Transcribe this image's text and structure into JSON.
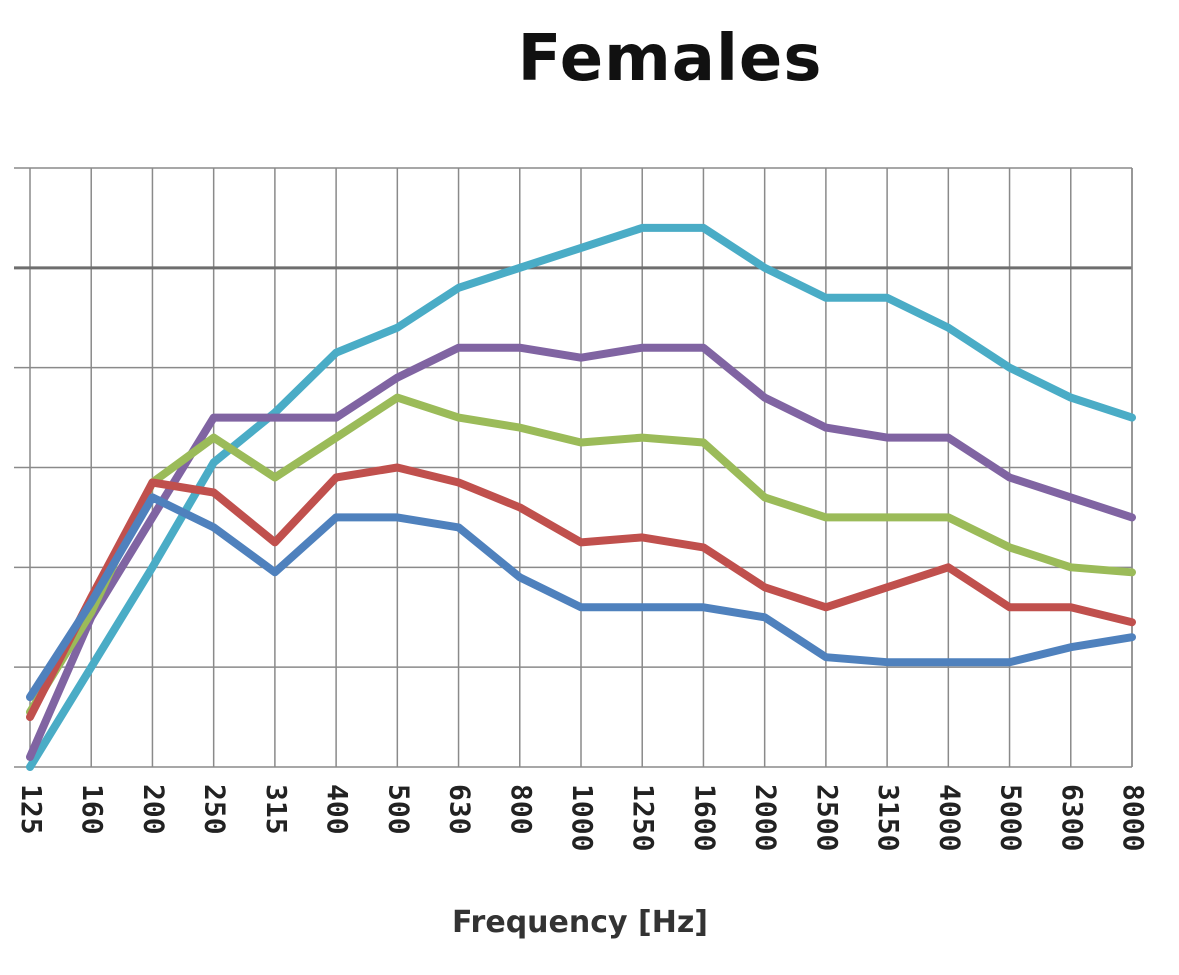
{
  "chart_data": {
    "type": "line",
    "title": "Females",
    "xlabel": "Frequency [Hz]",
    "ylabel": "",
    "categories": [
      "125",
      "160",
      "200",
      "250",
      "315",
      "400",
      "500",
      "630",
      "800",
      "1000",
      "1250",
      "1600",
      "2000",
      "2500",
      "3150",
      "4000",
      "5000",
      "6300",
      "8000"
    ],
    "ylim": [
      0,
      6
    ],
    "y_ticks_labeled": false,
    "grid": true,
    "legend": "none",
    "series": [
      {
        "color": "#4aacc6",
        "values": [
          0.0,
          1.0,
          2.0,
          3.05,
          3.55,
          4.15,
          4.4,
          4.8,
          5.0,
          5.2,
          5.4,
          5.4,
          5.0,
          4.7,
          4.7,
          4.4,
          4.0,
          3.7,
          3.5
        ]
      },
      {
        "color": "#8064a2",
        "values": [
          0.1,
          1.5,
          2.5,
          3.5,
          3.5,
          3.5,
          3.9,
          4.2,
          4.2,
          4.1,
          4.2,
          4.2,
          3.7,
          3.4,
          3.3,
          3.3,
          2.9,
          2.7,
          2.5
        ]
      },
      {
        "color": "#9bbb59",
        "values": [
          0.55,
          1.55,
          2.85,
          3.3,
          2.9,
          3.3,
          3.7,
          3.5,
          3.4,
          3.25,
          3.3,
          3.25,
          2.7,
          2.5,
          2.5,
          2.5,
          2.2,
          2.0,
          1.95
        ]
      },
      {
        "color": "#c0504d",
        "values": [
          0.5,
          1.7,
          2.85,
          2.75,
          2.25,
          2.9,
          3.0,
          2.85,
          2.6,
          2.25,
          2.3,
          2.2,
          1.8,
          1.6,
          1.8,
          2.0,
          1.6,
          1.6,
          1.45
        ]
      },
      {
        "color": "#4f81bd",
        "values": [
          0.7,
          1.65,
          2.7,
          2.4,
          1.95,
          2.5,
          2.5,
          2.4,
          1.9,
          1.6,
          1.6,
          1.6,
          1.5,
          1.1,
          1.05,
          1.05,
          1.05,
          1.2,
          1.3
        ]
      }
    ]
  }
}
